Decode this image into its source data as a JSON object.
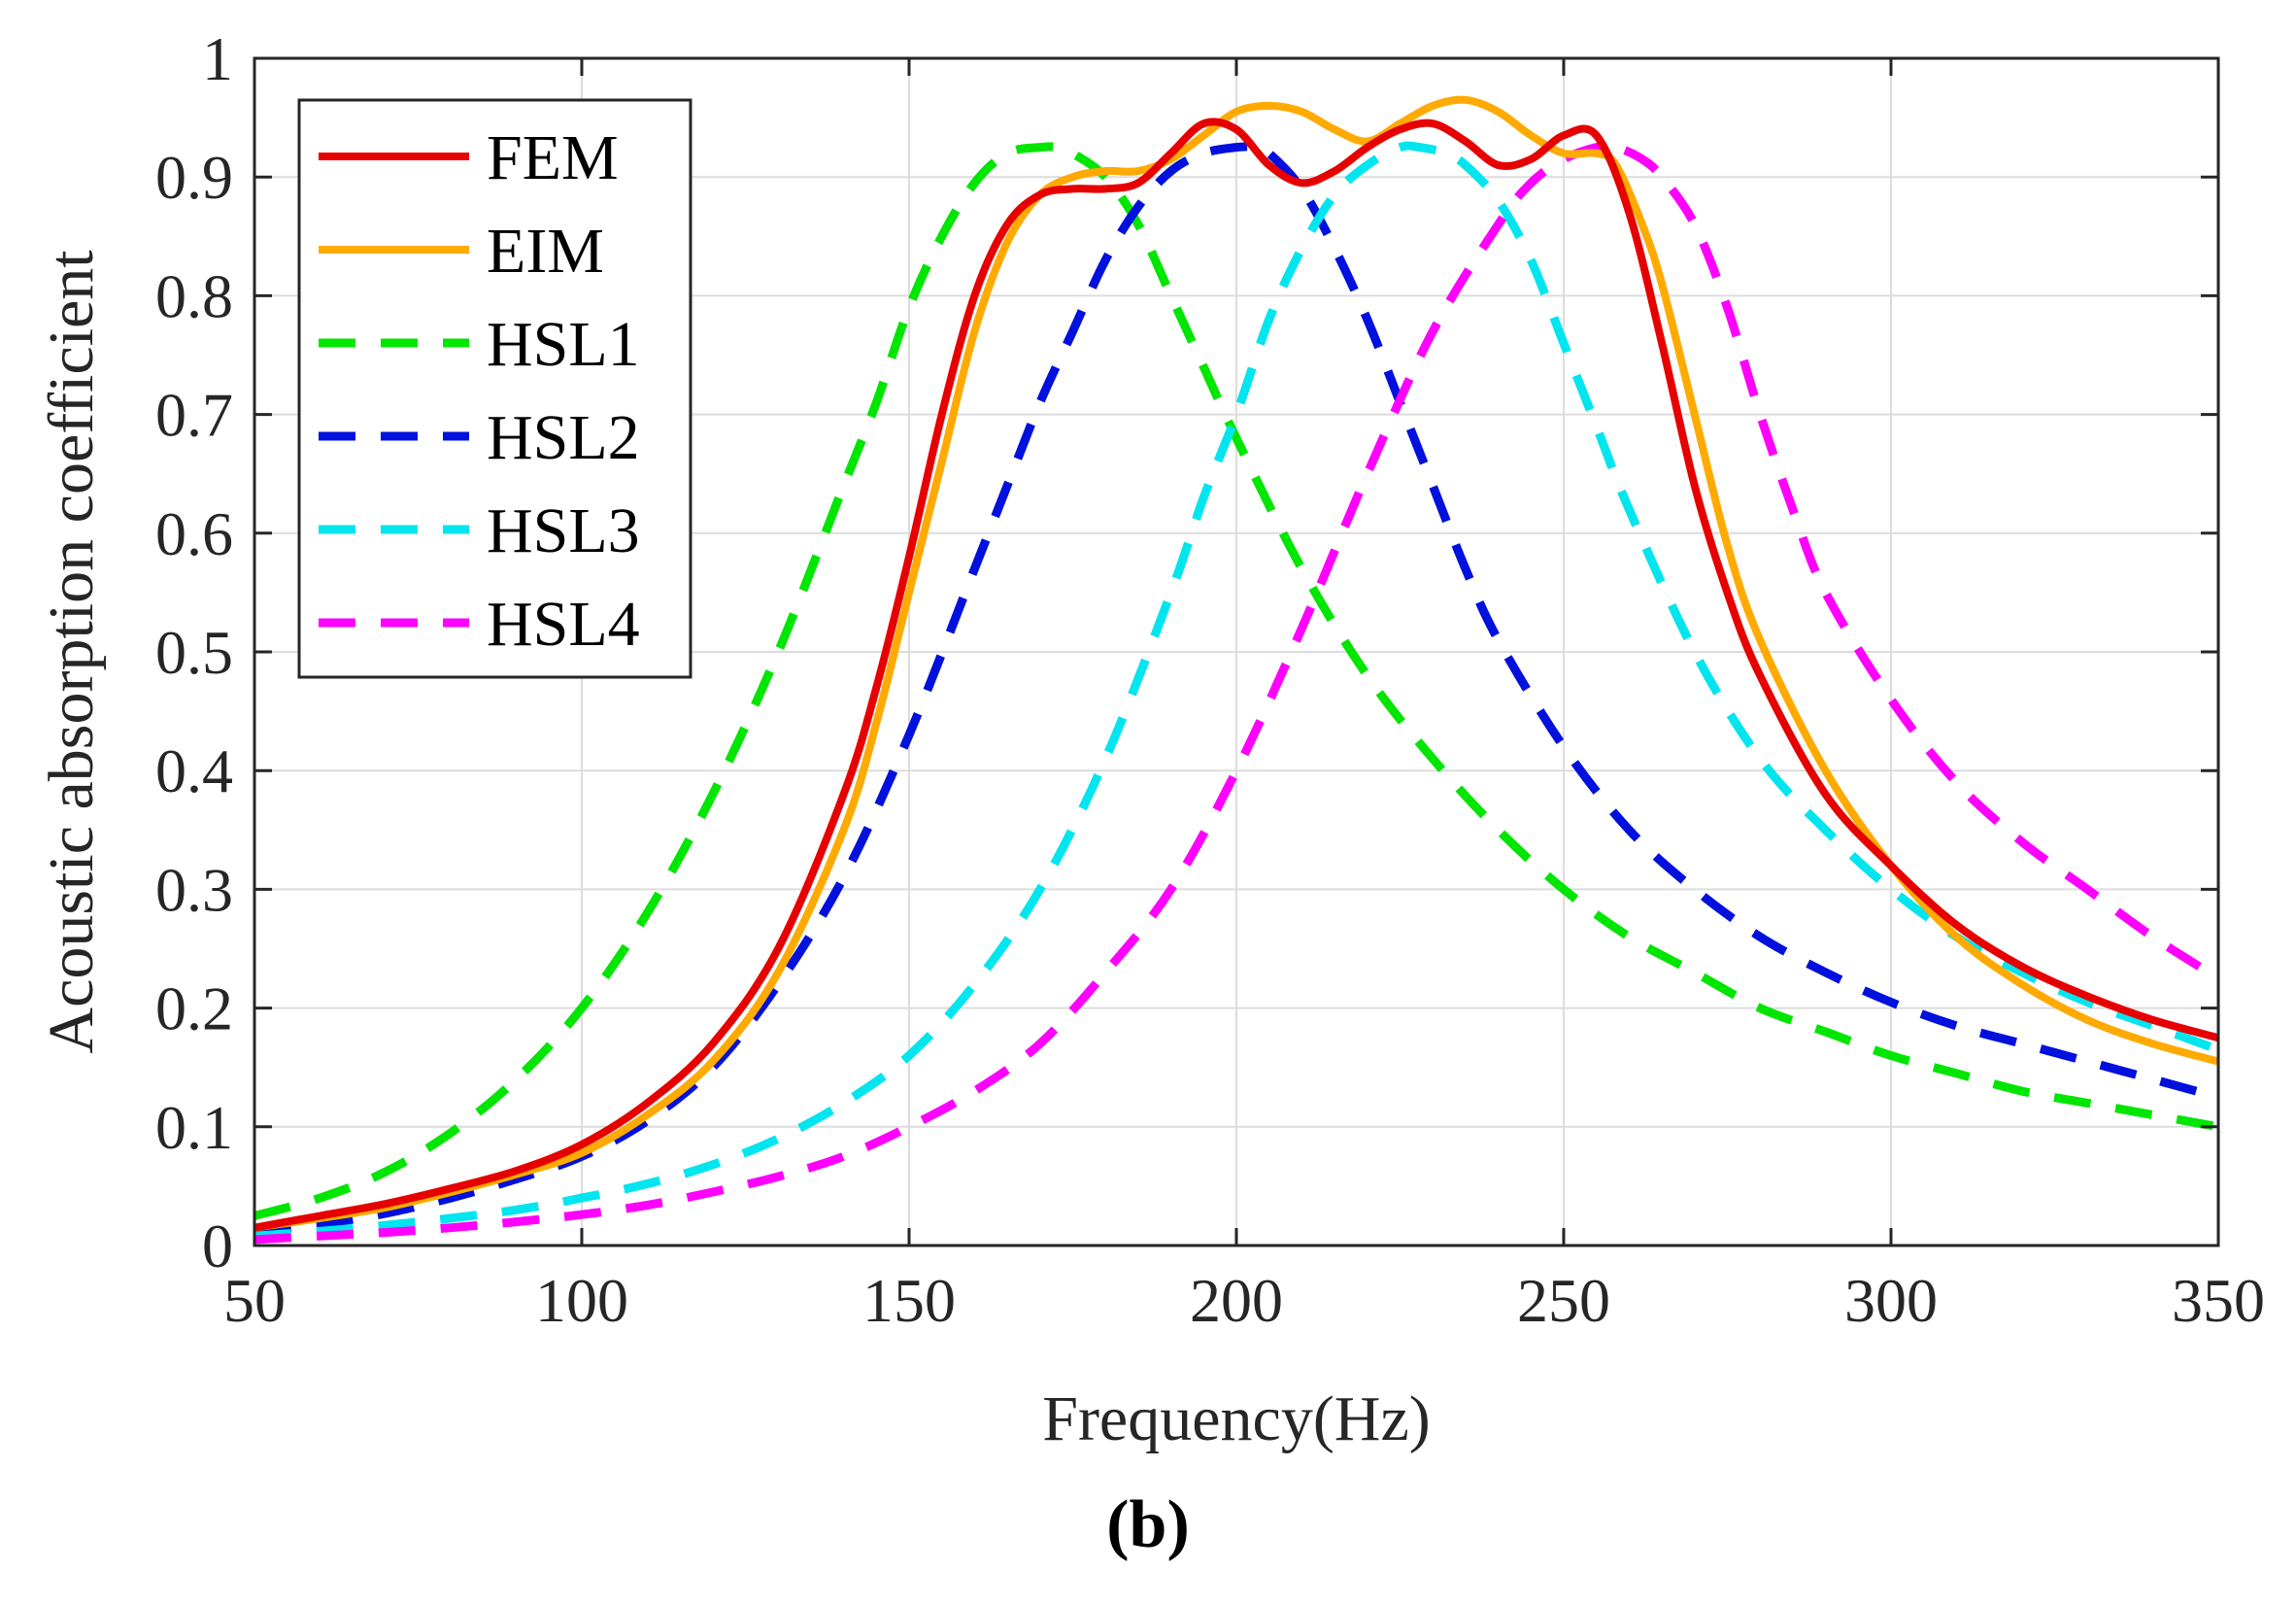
{
  "chart_data": {
    "type": "line",
    "title": "",
    "xlabel": "Frequency(Hz)",
    "ylabel": "Acoustic absorption coefficient",
    "xlim": [
      50,
      350
    ],
    "ylim": [
      0,
      1
    ],
    "xticks": [
      "50",
      "100",
      "150",
      "200",
      "250",
      "300",
      "350"
    ],
    "yticks": [
      "0",
      "0.1",
      "0.2",
      "0.3",
      "0.4",
      "0.5",
      "0.6",
      "0.7",
      "0.8",
      "0.9",
      "1"
    ],
    "grid": true,
    "legend_position": "top-left",
    "series": [
      {
        "name": "FEM",
        "color": "#e60000",
        "style": "solid",
        "x": [
          50,
          60,
          70,
          80,
          90,
          100,
          110,
          120,
          130,
          140,
          145,
          150,
          155,
          160,
          165,
          170,
          175,
          180,
          185,
          190,
          195,
          200,
          205,
          210,
          215,
          220,
          225,
          230,
          235,
          240,
          245,
          250,
          255,
          260,
          265,
          270,
          275,
          280,
          290,
          300,
          310,
          320,
          330,
          340,
          350
        ],
        "y": [
          0.015,
          0.025,
          0.035,
          0.048,
          0.063,
          0.085,
          0.12,
          0.17,
          0.25,
          0.38,
          0.47,
          0.58,
          0.7,
          0.8,
          0.86,
          0.885,
          0.89,
          0.89,
          0.895,
          0.92,
          0.945,
          0.94,
          0.91,
          0.895,
          0.905,
          0.925,
          0.94,
          0.945,
          0.93,
          0.91,
          0.915,
          0.935,
          0.935,
          0.87,
          0.76,
          0.64,
          0.55,
          0.48,
          0.38,
          0.32,
          0.27,
          0.235,
          0.21,
          0.19,
          0.175
        ]
      },
      {
        "name": "EIM",
        "color": "#ffaa00",
        "style": "solid",
        "x": [
          50,
          60,
          70,
          80,
          90,
          100,
          110,
          120,
          130,
          140,
          145,
          150,
          155,
          160,
          165,
          170,
          175,
          180,
          185,
          190,
          195,
          200,
          205,
          210,
          215,
          220,
          225,
          230,
          235,
          240,
          245,
          250,
          255,
          258,
          262,
          265,
          270,
          275,
          280,
          290,
          300,
          310,
          320,
          330,
          340,
          350
        ],
        "y": [
          0.015,
          0.023,
          0.032,
          0.045,
          0.06,
          0.078,
          0.11,
          0.155,
          0.23,
          0.35,
          0.44,
          0.55,
          0.66,
          0.77,
          0.845,
          0.885,
          0.9,
          0.905,
          0.905,
          0.915,
          0.935,
          0.955,
          0.96,
          0.955,
          0.94,
          0.93,
          0.945,
          0.96,
          0.965,
          0.955,
          0.935,
          0.92,
          0.92,
          0.91,
          0.86,
          0.81,
          0.7,
          0.59,
          0.51,
          0.4,
          0.32,
          0.26,
          0.22,
          0.19,
          0.17,
          0.155
        ]
      },
      {
        "name": "HSL1",
        "color": "#00e600",
        "style": "dashed",
        "x": [
          50,
          60,
          70,
          80,
          90,
          100,
          110,
          120,
          130,
          140,
          145,
          150,
          155,
          160,
          165,
          170,
          173,
          175,
          180,
          185,
          190,
          195,
          200,
          210,
          220,
          230,
          240,
          250,
          260,
          270,
          280,
          290,
          300,
          310,
          320,
          330,
          340,
          350
        ],
        "y": [
          0.025,
          0.04,
          0.062,
          0.095,
          0.14,
          0.2,
          0.28,
          0.38,
          0.5,
          0.64,
          0.71,
          0.79,
          0.85,
          0.895,
          0.92,
          0.925,
          0.925,
          0.92,
          0.9,
          0.86,
          0.8,
          0.74,
          0.68,
          0.57,
          0.48,
          0.41,
          0.35,
          0.3,
          0.26,
          0.23,
          0.2,
          0.18,
          0.16,
          0.145,
          0.13,
          0.12,
          0.11,
          0.1
        ]
      },
      {
        "name": "HSL2",
        "color": "#0010dd",
        "style": "dashed",
        "x": [
          50,
          60,
          70,
          80,
          90,
          100,
          110,
          120,
          130,
          140,
          150,
          160,
          165,
          170,
          175,
          180,
          185,
          190,
          195,
          200,
          203,
          205,
          210,
          215,
          220,
          225,
          230,
          235,
          240,
          250,
          260,
          270,
          280,
          290,
          300,
          310,
          320,
          330,
          340,
          350
        ],
        "y": [
          0.012,
          0.018,
          0.027,
          0.04,
          0.056,
          0.075,
          0.105,
          0.15,
          0.22,
          0.31,
          0.43,
          0.57,
          0.64,
          0.71,
          0.77,
          0.83,
          0.875,
          0.905,
          0.92,
          0.925,
          0.925,
          0.92,
          0.89,
          0.84,
          0.78,
          0.71,
          0.64,
          0.57,
          0.51,
          0.42,
          0.35,
          0.3,
          0.26,
          0.23,
          0.205,
          0.185,
          0.17,
          0.155,
          0.14,
          0.125
        ]
      },
      {
        "name": "HSL3",
        "color": "#00e5ee",
        "style": "dashed",
        "x": [
          50,
          60,
          70,
          80,
          90,
          100,
          110,
          120,
          130,
          140,
          150,
          160,
          170,
          180,
          190,
          195,
          200,
          205,
          210,
          215,
          220,
          225,
          228,
          232,
          235,
          240,
          245,
          250,
          255,
          260,
          270,
          280,
          290,
          300,
          310,
          320,
          330,
          340,
          350
        ],
        "y": [
          0.008,
          0.012,
          0.017,
          0.023,
          0.03,
          0.04,
          0.052,
          0.068,
          0.09,
          0.12,
          0.16,
          0.22,
          0.3,
          0.41,
          0.55,
          0.63,
          0.7,
          0.78,
          0.84,
          0.885,
          0.91,
          0.925,
          0.925,
          0.92,
          0.91,
          0.88,
          0.83,
          0.76,
          0.69,
          0.62,
          0.5,
          0.41,
          0.35,
          0.3,
          0.26,
          0.23,
          0.205,
          0.185,
          0.165
        ]
      },
      {
        "name": "HSL4",
        "color": "#ff00ff",
        "style": "dashed",
        "x": [
          50,
          60,
          70,
          80,
          90,
          100,
          110,
          120,
          130,
          140,
          150,
          160,
          170,
          180,
          190,
          200,
          210,
          220,
          230,
          240,
          245,
          250,
          255,
          258,
          262,
          265,
          270,
          275,
          280,
          285,
          290,
          300,
          310,
          320,
          330,
          340,
          350
        ],
        "y": [
          0.005,
          0.008,
          0.011,
          0.015,
          0.02,
          0.026,
          0.034,
          0.045,
          0.058,
          0.075,
          0.1,
          0.13,
          0.17,
          0.23,
          0.3,
          0.4,
          0.52,
          0.65,
          0.77,
          0.86,
          0.895,
          0.915,
          0.925,
          0.925,
          0.915,
          0.9,
          0.86,
          0.79,
          0.7,
          0.62,
          0.55,
          0.46,
          0.39,
          0.34,
          0.3,
          0.26,
          0.225
        ]
      }
    ]
  },
  "caption": {
    "text": "(b)"
  }
}
